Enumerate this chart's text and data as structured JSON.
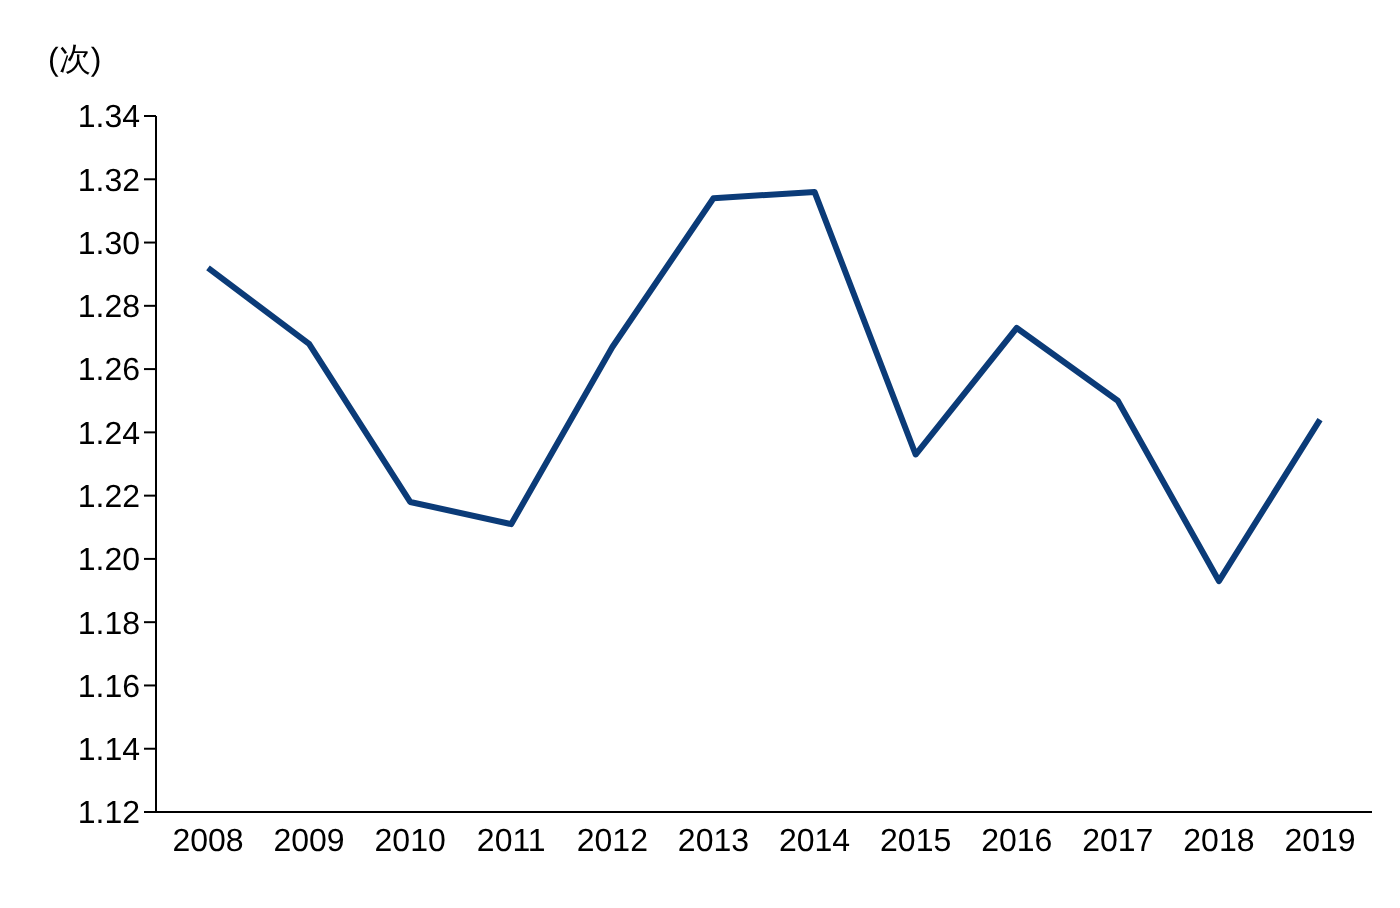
{
  "chart_data": {
    "type": "line",
    "ylabel": "(次)",
    "categories": [
      "2008",
      "2009",
      "2010",
      "2011",
      "2012",
      "2013",
      "2014",
      "2015",
      "2016",
      "2017",
      "2018",
      "2019"
    ],
    "series": [
      {
        "color": "#0b3b78",
        "values": [
          1.292,
          1.268,
          1.218,
          1.211,
          1.267,
          1.314,
          1.316,
          1.233,
          1.273,
          1.25,
          1.193,
          1.244
        ]
      }
    ],
    "ylim": [
      1.12,
      1.34
    ],
    "yticks": [
      1.12,
      1.14,
      1.16,
      1.18,
      {
        "value": 1.2,
        "label": "1.20"
      },
      1.22,
      1.24,
      1.26,
      1.28,
      {
        "value": 1.3,
        "label": "1.30"
      },
      1.32,
      1.34
    ],
    "grid": false,
    "legend": false,
    "marker": "none",
    "line_style": "solid"
  }
}
